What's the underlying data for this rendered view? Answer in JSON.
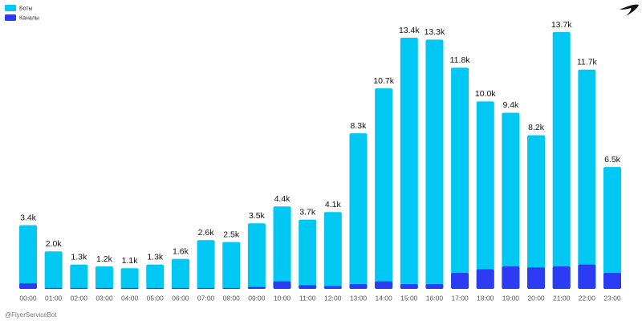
{
  "chart_data": {
    "type": "bar",
    "categories": [
      "00:00",
      "01:00",
      "02:00",
      "03:00",
      "04:00",
      "05:00",
      "06:00",
      "07:00",
      "08:00",
      "09:00",
      "10:00",
      "11:00",
      "12:00",
      "13:00",
      "14:00",
      "15:00",
      "16:00",
      "17:00",
      "18:00",
      "19:00",
      "20:00",
      "21:00",
      "22:00",
      "23:00"
    ],
    "series": [
      {
        "name": "Боты",
        "color": "#00c8f2",
        "values": [
          3.4,
          2.0,
          1.3,
          1.2,
          1.1,
          1.3,
          1.6,
          2.6,
          2.5,
          3.5,
          4.4,
          3.7,
          4.1,
          8.3,
          10.7,
          13.4,
          13.3,
          11.8,
          10.0,
          9.4,
          8.2,
          13.7,
          11.7,
          6.5
        ],
        "value_labels": [
          "3.4k",
          "2.0k",
          "1.3k",
          "1.2k",
          "1.1k",
          "1.3k",
          "1.6k",
          "2.6k",
          "2.5k",
          "3.5k",
          "4.4k",
          "3.7k",
          "4.1k",
          "8.3k",
          "10.7k",
          "13.4k",
          "13.3k",
          "11.8k",
          "10.0k",
          "9.4k",
          "8.2k",
          "13.7k",
          "11.7k",
          "6.5k"
        ]
      },
      {
        "name": "Каналы",
        "color": "#2b3cf2",
        "values": [
          0.3,
          0.05,
          0.05,
          0.05,
          0.05,
          0.05,
          0.05,
          0.05,
          0.05,
          0.1,
          0.4,
          0.2,
          0.15,
          0.25,
          0.4,
          0.25,
          0.25,
          0.85,
          1.05,
          1.2,
          1.15,
          1.2,
          1.3,
          0.85
        ]
      }
    ],
    "ylim": [
      0,
      13.7
    ],
    "watermark": "@FlyerServiceBot"
  }
}
